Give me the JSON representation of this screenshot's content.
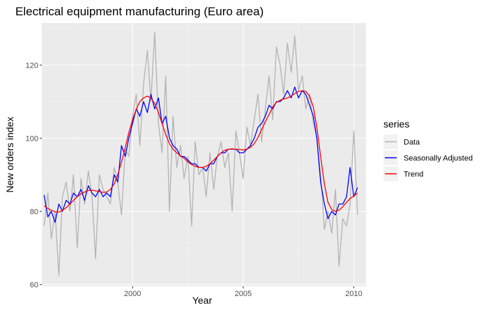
{
  "chart_data": {
    "type": "line",
    "title": "Electrical equipment manufacturing (Euro area)",
    "xlabel": "Year",
    "ylabel": "New orders index",
    "xlim": [
      1995.9,
      2010.55
    ],
    "ylim": [
      59.5,
      131.5
    ],
    "xticks": [
      2000,
      2005,
      2010
    ],
    "yticks": [
      60,
      80,
      100,
      120
    ],
    "xtick_labels": [
      "2000",
      "2005",
      "2010"
    ],
    "ytick_labels": [
      "60",
      "80",
      "100",
      "120"
    ],
    "grid": true,
    "legend": {
      "title": "series",
      "position": "right",
      "entries": [
        "Data",
        "Seasonally Adjusted",
        "Trend"
      ]
    },
    "series": [
      {
        "name": "Data",
        "color": "#b3b3b3",
        "x": [
          1996.0,
          1996.17,
          1996.33,
          1996.5,
          1996.67,
          1996.83,
          1997.0,
          1997.17,
          1997.33,
          1997.5,
          1997.67,
          1997.83,
          1998.0,
          1998.17,
          1998.33,
          1998.5,
          1998.67,
          1998.83,
          1999.0,
          1999.17,
          1999.33,
          1999.5,
          1999.67,
          1999.83,
          2000.0,
          2000.17,
          2000.33,
          2000.5,
          2000.67,
          2000.83,
          2001.0,
          2001.17,
          2001.33,
          2001.5,
          2001.67,
          2001.83,
          2002.0,
          2002.17,
          2002.33,
          2002.5,
          2002.67,
          2002.83,
          2003.0,
          2003.17,
          2003.33,
          2003.5,
          2003.67,
          2003.83,
          2004.0,
          2004.17,
          2004.33,
          2004.5,
          2004.67,
          2004.83,
          2005.0,
          2005.17,
          2005.33,
          2005.5,
          2005.67,
          2005.83,
          2006.0,
          2006.17,
          2006.33,
          2006.5,
          2006.67,
          2006.83,
          2007.0,
          2007.17,
          2007.33,
          2007.5,
          2007.67,
          2007.83,
          2008.0,
          2008.17,
          2008.33,
          2008.5,
          2008.67,
          2008.83,
          2009.0,
          2009.17,
          2009.33,
          2009.5,
          2009.67,
          2009.83,
          2010.0,
          2010.17
        ],
        "y": [
          76,
          85,
          72.5,
          80,
          62.5,
          84,
          88,
          80,
          90,
          70,
          89,
          82,
          91,
          84,
          67,
          90,
          86,
          84,
          82,
          92,
          88,
          79,
          97,
          95,
          106,
          112,
          98,
          115,
          124,
          110,
          129,
          104,
          96,
          117,
          80,
          106,
          92,
          98,
          89,
          95,
          76,
          99,
          90,
          92,
          84,
          96,
          86,
          95,
          99,
          92,
          96,
          80,
          102,
          96,
          89,
          103,
          98,
          105,
          112,
          99,
          108,
          117,
          105,
          125,
          120,
          112,
          126,
          118,
          128,
          113,
          117,
          108,
          112,
          104,
          100,
          90,
          75,
          80,
          74,
          86,
          65,
          78,
          76,
          82,
          102,
          79
        ]
      },
      {
        "name": "Seasonally Adjusted",
        "color": "#0000ff",
        "x": [
          1996.0,
          1996.17,
          1996.33,
          1996.5,
          1996.67,
          1996.83,
          1997.0,
          1997.17,
          1997.33,
          1997.5,
          1997.67,
          1997.83,
          1998.0,
          1998.17,
          1998.33,
          1998.5,
          1998.67,
          1998.83,
          1999.0,
          1999.17,
          1999.33,
          1999.5,
          1999.67,
          1999.83,
          2000.0,
          2000.17,
          2000.33,
          2000.5,
          2000.67,
          2000.83,
          2001.0,
          2001.17,
          2001.33,
          2001.5,
          2001.67,
          2001.83,
          2002.0,
          2002.17,
          2002.33,
          2002.5,
          2002.67,
          2002.83,
          2003.0,
          2003.17,
          2003.33,
          2003.5,
          2003.67,
          2003.83,
          2004.0,
          2004.17,
          2004.33,
          2004.5,
          2004.67,
          2004.83,
          2005.0,
          2005.17,
          2005.33,
          2005.5,
          2005.67,
          2005.83,
          2006.0,
          2006.17,
          2006.33,
          2006.5,
          2006.67,
          2006.83,
          2007.0,
          2007.17,
          2007.33,
          2007.5,
          2007.67,
          2007.83,
          2008.0,
          2008.17,
          2008.33,
          2008.5,
          2008.67,
          2008.83,
          2009.0,
          2009.17,
          2009.33,
          2009.5,
          2009.67,
          2009.83,
          2010.0,
          2010.17
        ],
        "y": [
          84.5,
          78.5,
          80,
          77,
          82,
          80,
          83,
          82,
          85,
          84,
          86,
          83,
          87,
          85,
          84,
          86,
          84,
          85,
          84,
          90,
          88,
          98,
          95,
          100,
          104,
          108,
          106,
          110,
          107,
          112,
          108,
          111,
          104,
          106,
          100,
          98,
          97,
          95,
          95,
          94,
          93,
          93,
          92,
          92,
          91,
          93,
          93,
          95,
          96,
          96,
          97,
          97,
          97,
          96,
          96,
          97,
          98,
          100,
          103,
          104,
          106,
          109,
          108,
          110,
          110,
          111,
          113,
          111,
          114,
          111,
          113,
          112,
          109,
          106,
          100,
          88,
          82,
          78,
          80,
          79,
          82,
          82,
          84,
          92,
          84,
          86.5
        ]
      },
      {
        "name": "Trend",
        "color": "#ff0000",
        "x": [
          1996.0,
          1996.17,
          1996.33,
          1996.5,
          1996.67,
          1996.83,
          1997.0,
          1997.17,
          1997.33,
          1997.5,
          1997.67,
          1997.83,
          1998.0,
          1998.17,
          1998.33,
          1998.5,
          1998.67,
          1998.83,
          1999.0,
          1999.17,
          1999.33,
          1999.5,
          1999.67,
          1999.83,
          2000.0,
          2000.17,
          2000.33,
          2000.5,
          2000.67,
          2000.83,
          2001.0,
          2001.17,
          2001.33,
          2001.5,
          2001.67,
          2001.83,
          2002.0,
          2002.17,
          2002.33,
          2002.5,
          2002.67,
          2002.83,
          2003.0,
          2003.17,
          2003.33,
          2003.5,
          2003.67,
          2003.83,
          2004.0,
          2004.17,
          2004.33,
          2004.5,
          2004.67,
          2004.83,
          2005.0,
          2005.17,
          2005.33,
          2005.5,
          2005.67,
          2005.83,
          2006.0,
          2006.17,
          2006.33,
          2006.5,
          2006.67,
          2006.83,
          2007.0,
          2007.17,
          2007.33,
          2007.5,
          2007.67,
          2007.83,
          2008.0,
          2008.17,
          2008.33,
          2008.5,
          2008.67,
          2008.83,
          2009.0,
          2009.17,
          2009.33,
          2009.5,
          2009.67,
          2009.83,
          2010.0,
          2010.17
        ],
        "y": [
          81.5,
          80.8,
          80.3,
          79.9,
          79.8,
          80.3,
          81,
          82,
          83,
          84,
          84.8,
          85.3,
          85.7,
          85.8,
          85.6,
          85.4,
          85.2,
          85.3,
          86,
          87.5,
          90,
          93.5,
          97.5,
          101.5,
          105,
          108,
          110,
          111,
          111.5,
          111,
          109.5,
          107,
          104,
          101,
          98.5,
          97,
          96,
          95.2,
          94.5,
          93.5,
          92.8,
          92.3,
          92,
          92,
          92.3,
          93,
          94,
          95,
          96,
          96.7,
          97,
          97.1,
          97,
          96.9,
          96.8,
          97,
          97.5,
          98.5,
          100.2,
          102.3,
          104.5,
          106.5,
          108.5,
          109.8,
          110.4,
          110.7,
          111,
          111.5,
          112.2,
          112.8,
          113,
          112.8,
          111.5,
          108.5,
          103,
          95,
          87.5,
          82.5,
          80.5,
          80,
          80.3,
          81.3,
          82.5,
          83.5,
          84.2,
          85
        ]
      }
    ]
  }
}
